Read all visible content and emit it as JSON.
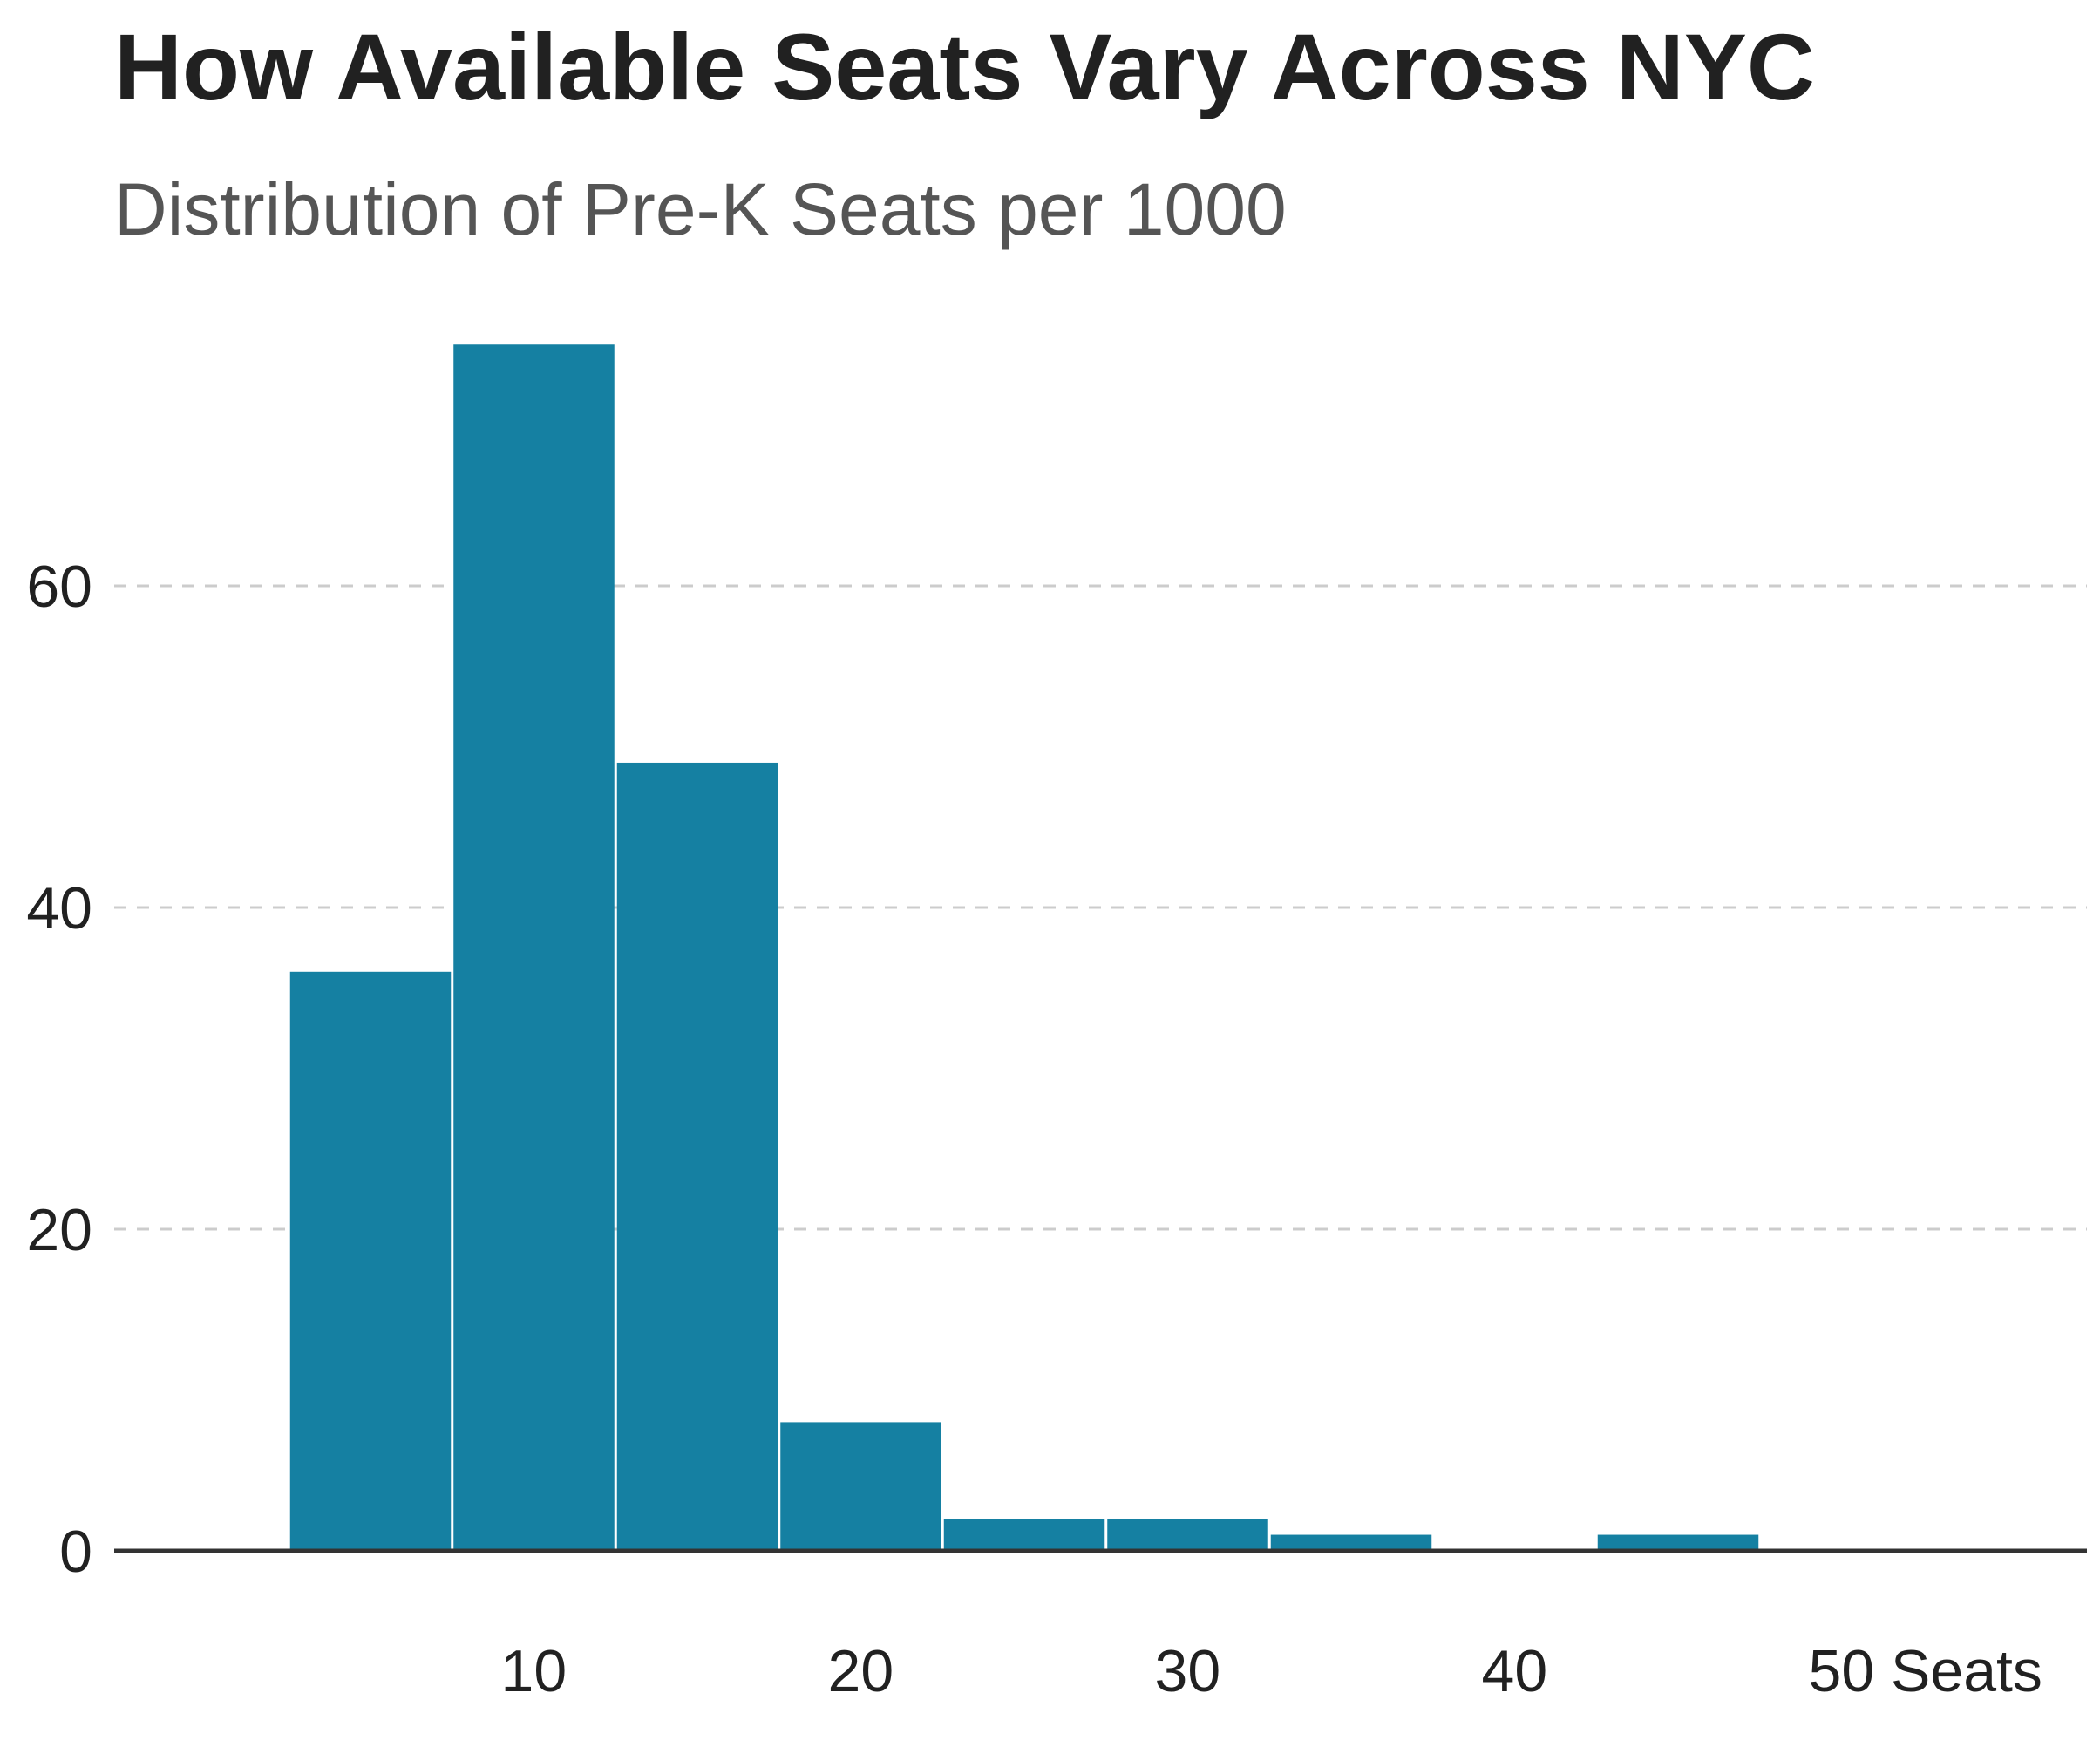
{
  "title": "How Available Seats Vary Across NYC",
  "subtitle": "Distribution of Pre-K Seats per 1000",
  "chart_data": {
    "type": "bar",
    "title": "How Available Seats Vary Across NYC",
    "subtitle": "Distribution of Pre-K Seats per 1000",
    "bin_width": 5,
    "bins": [
      {
        "start": 2.5,
        "end": 7.5,
        "count": 36
      },
      {
        "start": 7.5,
        "end": 12.5,
        "count": 75
      },
      {
        "start": 12.5,
        "end": 17.5,
        "count": 49
      },
      {
        "start": 17.5,
        "end": 22.5,
        "count": 8
      },
      {
        "start": 22.5,
        "end": 27.5,
        "count": 2
      },
      {
        "start": 27.5,
        "end": 32.5,
        "count": 2
      },
      {
        "start": 32.5,
        "end": 37.5,
        "count": 1
      },
      {
        "start": 37.5,
        "end": 42.5,
        "count": 0
      },
      {
        "start": 42.5,
        "end": 47.5,
        "count": 1
      }
    ],
    "xlim": [
      -2.5,
      57.5
    ],
    "ylim": [
      0,
      75
    ],
    "x_ticks": [
      10,
      20,
      30,
      40,
      50
    ],
    "x_tick_labels": [
      "10",
      "20",
      "30",
      "40",
      "50 Seats"
    ],
    "y_ticks": [
      0,
      20,
      40,
      60
    ],
    "y_tick_labels": [
      "0",
      "20",
      "40",
      "60"
    ],
    "grid": "horizontal dashed",
    "colors": {
      "bar": "#1580A2",
      "grid": "#cccccc",
      "baseline": "#333333",
      "text": "#212121"
    }
  }
}
